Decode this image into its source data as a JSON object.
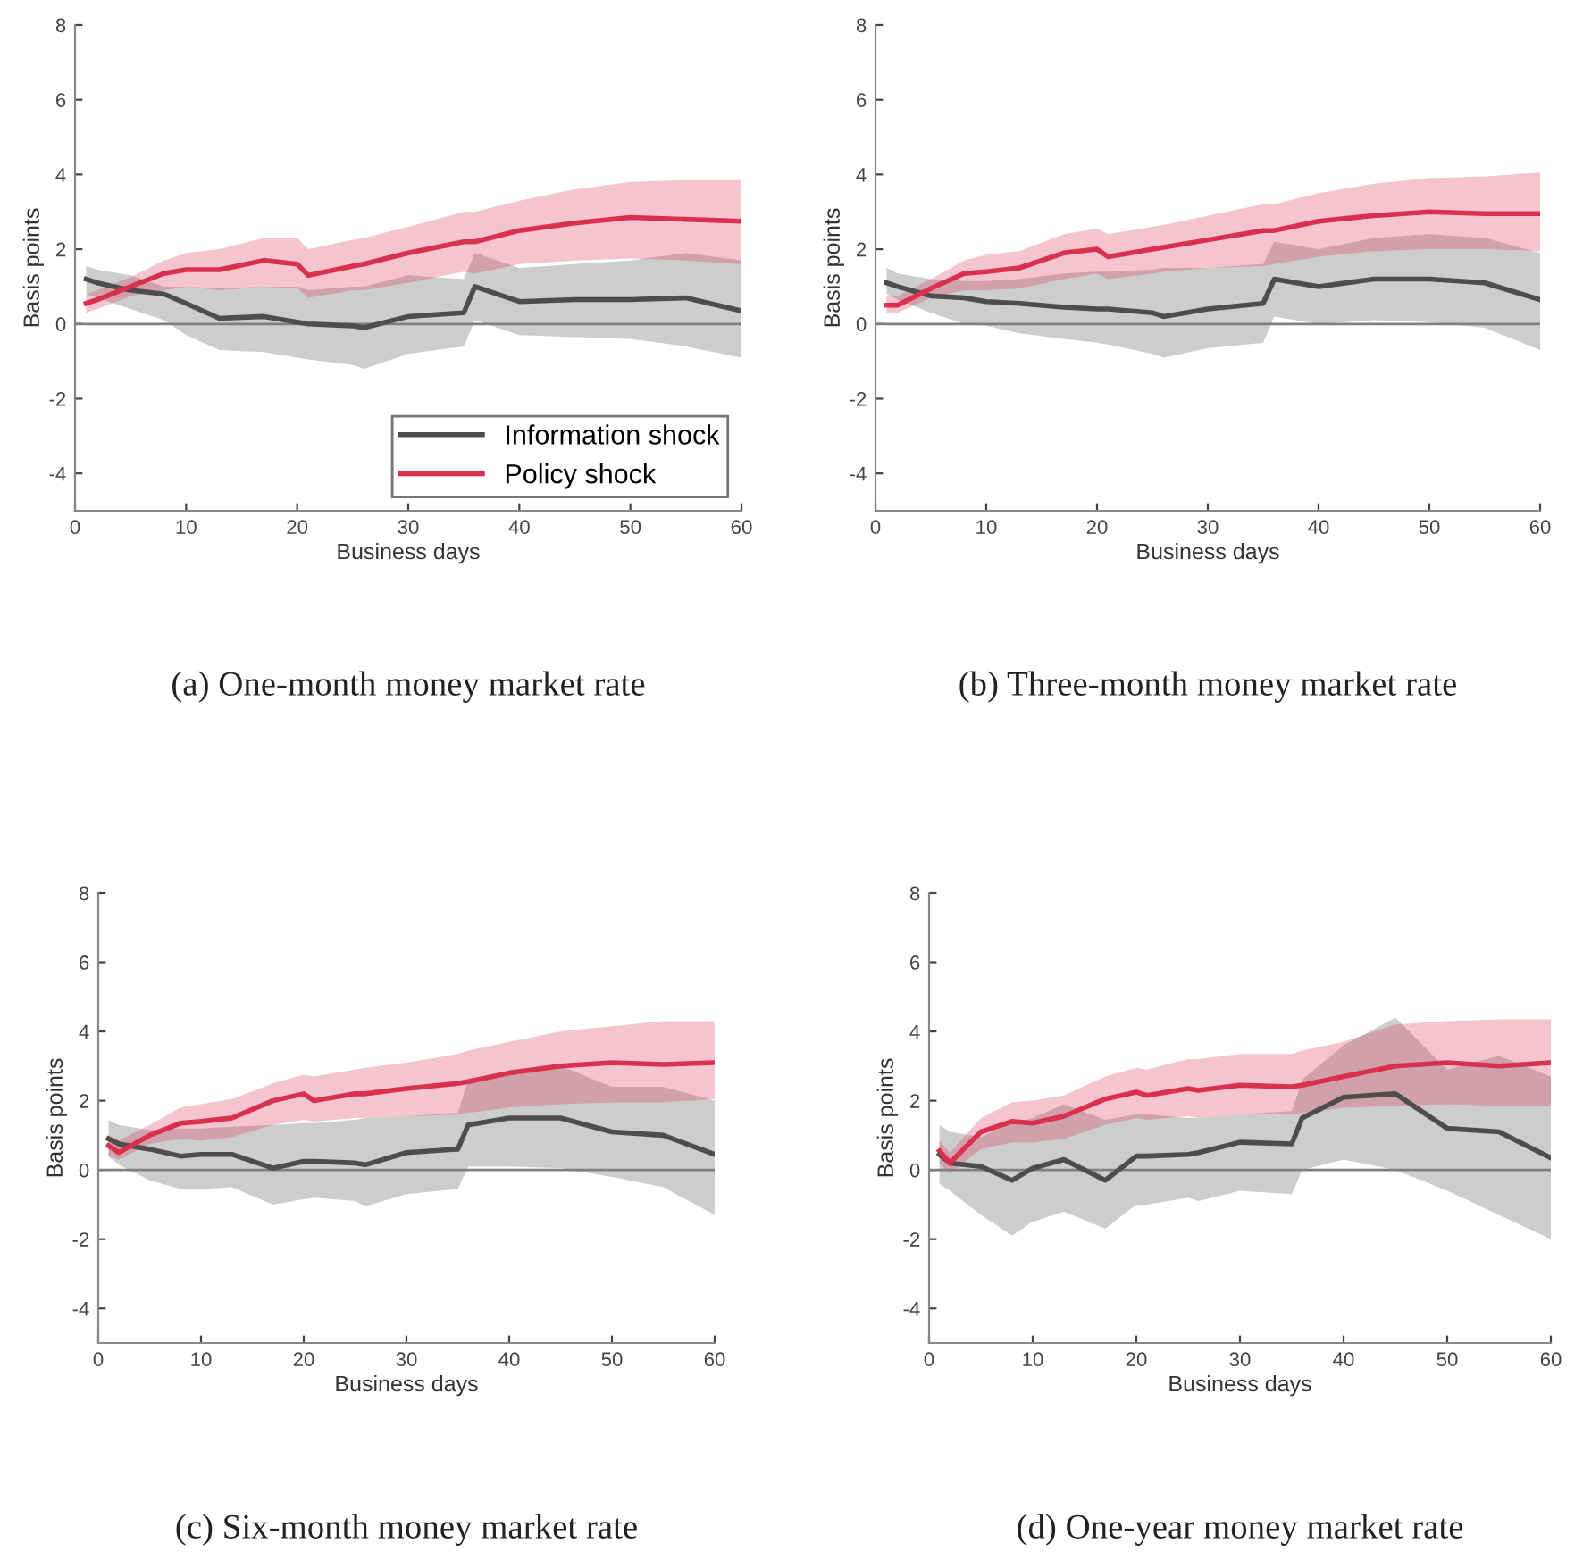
{
  "chart_data": [
    {
      "type": "line",
      "title": "(a) One-month money market rate",
      "xlabel": "Business days",
      "ylabel": "Basis points",
      "xlim": [
        0,
        60
      ],
      "ylim": [
        -5,
        8
      ],
      "xticks": [
        0,
        10,
        20,
        30,
        40,
        50,
        60
      ],
      "yticks": [
        -4,
        -2,
        0,
        2,
        4,
        6,
        8
      ],
      "legend": "bottom right",
      "grid": false,
      "ref_lines": [
        {
          "axis": "y",
          "value": 0,
          "color": "#808080"
        }
      ],
      "x": [
        1,
        2,
        5,
        8,
        10,
        13,
        17,
        20,
        21,
        25,
        26,
        30,
        35,
        36,
        40,
        45,
        50,
        55,
        60
      ],
      "series": [
        {
          "name": "Information shock",
          "color": "#4d4d4d",
          "values": [
            1.2,
            1.1,
            0.9,
            0.8,
            0.55,
            0.15,
            0.2,
            0.05,
            0.0,
            -0.05,
            -0.1,
            0.2,
            0.3,
            1.0,
            0.6,
            0.65,
            0.65,
            0.7,
            0.35
          ],
          "lower": [
            0.8,
            0.7,
            0.4,
            0.1,
            -0.3,
            -0.7,
            -0.75,
            -0.9,
            -0.95,
            -1.1,
            -1.2,
            -0.8,
            -0.6,
            0.1,
            -0.3,
            -0.35,
            -0.4,
            -0.6,
            -0.9
          ],
          "upper": [
            1.55,
            1.45,
            1.3,
            1.0,
            1.0,
            0.95,
            1.0,
            1.0,
            0.9,
            1.0,
            1.0,
            1.3,
            1.2,
            1.9,
            1.5,
            1.6,
            1.7,
            1.9,
            1.7
          ]
        },
        {
          "name": "Policy shock",
          "color": "#d9304f",
          "values": [
            0.55,
            0.65,
            1.0,
            1.35,
            1.45,
            1.45,
            1.7,
            1.6,
            1.3,
            1.55,
            1.6,
            1.9,
            2.2,
            2.2,
            2.5,
            2.7,
            2.85,
            2.8,
            2.75
          ],
          "lower": [
            0.3,
            0.4,
            0.75,
            0.9,
            1.0,
            0.9,
            1.0,
            0.95,
            0.7,
            0.9,
            0.9,
            1.1,
            1.4,
            1.35,
            1.6,
            1.7,
            1.75,
            1.7,
            1.6
          ],
          "upper": [
            0.8,
            0.9,
            1.25,
            1.7,
            1.9,
            2.0,
            2.3,
            2.3,
            2.0,
            2.25,
            2.3,
            2.6,
            3.0,
            3.0,
            3.3,
            3.6,
            3.8,
            3.85,
            3.85
          ]
        }
      ]
    },
    {
      "type": "line",
      "title": "(b) Three-month money market rate",
      "xlabel": "Business days",
      "ylabel": "Basis points",
      "xlim": [
        0,
        60
      ],
      "ylim": [
        -5,
        8
      ],
      "xticks": [
        0,
        10,
        20,
        30,
        40,
        50,
        60
      ],
      "yticks": [
        -4,
        -2,
        0,
        2,
        4,
        6,
        8
      ],
      "grid": false,
      "ref_lines": [
        {
          "axis": "y",
          "value": 0,
          "color": "#808080"
        }
      ],
      "x": [
        1,
        2,
        5,
        8,
        10,
        13,
        17,
        20,
        21,
        25,
        26,
        30,
        35,
        36,
        40,
        45,
        50,
        55,
        60
      ],
      "series": [
        {
          "color": "#4d4d4d",
          "values": [
            1.1,
            1.0,
            0.75,
            0.7,
            0.6,
            0.55,
            0.45,
            0.4,
            0.4,
            0.3,
            0.2,
            0.4,
            0.55,
            1.2,
            1.0,
            1.2,
            1.2,
            1.1,
            0.65
          ],
          "lower": [
            0.8,
            0.65,
            0.3,
            0.0,
            -0.05,
            -0.25,
            -0.4,
            -0.5,
            -0.55,
            -0.8,
            -0.9,
            -0.65,
            -0.5,
            0.2,
            0.0,
            0.1,
            0.05,
            -0.1,
            -0.7
          ],
          "upper": [
            1.5,
            1.35,
            1.2,
            1.15,
            1.15,
            1.2,
            1.35,
            1.4,
            1.4,
            1.45,
            1.5,
            1.5,
            1.6,
            2.2,
            2.0,
            2.3,
            2.4,
            2.3,
            1.9
          ]
        },
        {
          "color": "#d9304f",
          "values": [
            0.5,
            0.5,
            0.95,
            1.35,
            1.4,
            1.5,
            1.9,
            2.0,
            1.8,
            2.0,
            2.05,
            2.25,
            2.5,
            2.5,
            2.75,
            2.9,
            3.0,
            2.95,
            2.95
          ],
          "lower": [
            0.3,
            0.3,
            0.7,
            0.9,
            0.9,
            0.95,
            1.2,
            1.35,
            1.2,
            1.35,
            1.4,
            1.5,
            1.55,
            1.6,
            1.8,
            1.95,
            2.0,
            2.0,
            1.95
          ],
          "upper": [
            0.75,
            0.75,
            1.2,
            1.7,
            1.85,
            1.95,
            2.4,
            2.55,
            2.4,
            2.6,
            2.65,
            2.9,
            3.2,
            3.2,
            3.5,
            3.75,
            3.9,
            3.95,
            4.05
          ]
        }
      ]
    },
    {
      "type": "line",
      "title": "(c) Six-month money market rate",
      "xlabel": "Business days",
      "ylabel": "Basis points",
      "xlim": [
        0,
        60
      ],
      "ylim": [
        -5,
        8
      ],
      "xticks": [
        0,
        10,
        20,
        30,
        40,
        50,
        60
      ],
      "yticks": [
        -4,
        -2,
        0,
        2,
        4,
        6,
        8
      ],
      "grid": false,
      "ref_lines": [
        {
          "axis": "y",
          "value": 0,
          "color": "#808080"
        }
      ],
      "x": [
        1,
        2,
        5,
        8,
        10,
        13,
        17,
        20,
        21,
        25,
        26,
        30,
        35,
        36,
        40,
        45,
        50,
        55,
        60
      ],
      "series": [
        {
          "color": "#4d4d4d",
          "values": [
            0.9,
            0.75,
            0.6,
            0.4,
            0.45,
            0.45,
            0.05,
            0.25,
            0.25,
            0.2,
            0.15,
            0.5,
            0.6,
            1.3,
            1.5,
            1.5,
            1.1,
            1.0,
            0.45
          ],
          "lower": [
            0.4,
            0.15,
            -0.3,
            -0.55,
            -0.55,
            -0.5,
            -1.0,
            -0.85,
            -0.8,
            -0.9,
            -1.05,
            -0.7,
            -0.55,
            0.1,
            0.1,
            0.05,
            -0.2,
            -0.5,
            -1.3
          ],
          "upper": [
            1.45,
            1.3,
            1.15,
            1.2,
            1.2,
            1.25,
            1.3,
            1.35,
            1.35,
            1.45,
            1.5,
            1.55,
            1.65,
            2.6,
            2.8,
            3.0,
            2.4,
            2.4,
            2.0
          ]
        },
        {
          "color": "#d9304f",
          "values": [
            0.7,
            0.5,
            1.0,
            1.35,
            1.4,
            1.5,
            2.0,
            2.2,
            2.0,
            2.2,
            2.2,
            2.35,
            2.5,
            2.55,
            2.8,
            3.0,
            3.1,
            3.05,
            3.1
          ],
          "lower": [
            0.4,
            0.3,
            0.75,
            0.9,
            0.85,
            0.95,
            1.3,
            1.45,
            1.4,
            1.5,
            1.5,
            1.55,
            1.6,
            1.65,
            1.8,
            1.9,
            1.95,
            1.95,
            2.05
          ],
          "upper": [
            1.0,
            0.85,
            1.3,
            1.8,
            1.9,
            2.05,
            2.5,
            2.75,
            2.7,
            2.9,
            2.95,
            3.1,
            3.35,
            3.45,
            3.7,
            4.0,
            4.15,
            4.3,
            4.3
          ]
        }
      ]
    },
    {
      "type": "line",
      "title": "(d) One-year money market rate",
      "xlabel": "Business days",
      "ylabel": "Basis points",
      "xlim": [
        0,
        60
      ],
      "ylim": [
        -5,
        8
      ],
      "xticks": [
        0,
        10,
        20,
        30,
        40,
        50,
        60
      ],
      "yticks": [
        -4,
        -2,
        0,
        2,
        4,
        6,
        8
      ],
      "grid": false,
      "ref_lines": [
        {
          "axis": "y",
          "value": 0,
          "color": "#808080"
        }
      ],
      "x": [
        1,
        2,
        5,
        8,
        10,
        13,
        17,
        20,
        21,
        25,
        26,
        30,
        35,
        36,
        40,
        45,
        50,
        55,
        60
      ],
      "series": [
        {
          "color": "#4d4d4d",
          "values": [
            0.45,
            0.2,
            0.1,
            -0.3,
            0.05,
            0.3,
            -0.3,
            0.4,
            0.4,
            0.45,
            0.5,
            0.8,
            0.75,
            1.5,
            2.1,
            2.2,
            1.2,
            1.1,
            0.35
          ],
          "lower": [
            -0.4,
            -0.6,
            -1.3,
            -1.9,
            -1.5,
            -1.2,
            -1.7,
            -1.0,
            -1.0,
            -0.8,
            -0.9,
            -0.6,
            -0.7,
            0.0,
            0.3,
            0.0,
            -0.6,
            -1.3,
            -2.0
          ],
          "upper": [
            1.3,
            1.1,
            0.95,
            1.35,
            1.5,
            1.9,
            1.45,
            1.6,
            1.6,
            1.5,
            1.5,
            1.6,
            1.7,
            2.6,
            3.6,
            4.4,
            2.9,
            3.3,
            2.7
          ]
        },
        {
          "color": "#d9304f",
          "values": [
            0.55,
            0.2,
            1.1,
            1.4,
            1.35,
            1.55,
            2.05,
            2.25,
            2.15,
            2.35,
            2.3,
            2.45,
            2.4,
            2.45,
            2.7,
            3.0,
            3.1,
            3.0,
            3.1
          ],
          "lower": [
            0.2,
            -0.1,
            0.6,
            0.8,
            0.8,
            0.9,
            1.3,
            1.5,
            1.45,
            1.55,
            1.5,
            1.6,
            1.6,
            1.65,
            1.8,
            1.85,
            1.9,
            1.85,
            1.85
          ],
          "upper": [
            0.85,
            0.5,
            1.5,
            1.95,
            2.0,
            2.15,
            2.7,
            2.95,
            2.9,
            3.2,
            3.2,
            3.35,
            3.35,
            3.45,
            3.7,
            4.2,
            4.3,
            4.35,
            4.35
          ]
        }
      ]
    }
  ]
}
